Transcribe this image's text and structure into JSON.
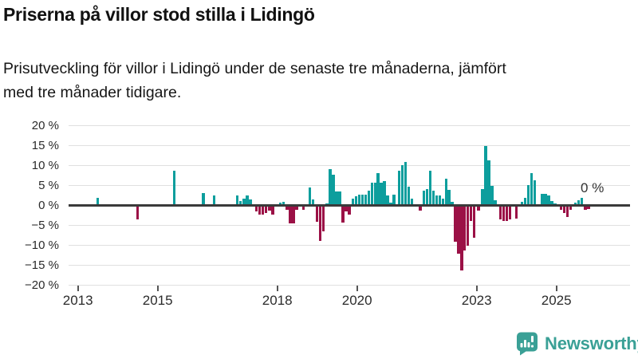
{
  "title": "Priserna på villor stod stilla i Lidingö",
  "subtitle": "Prisutveckling för villor i Lidingö under de senaste tre månaderna, jämfört\nmed tre månader tidigare.",
  "logo": {
    "text": "Newsworthy"
  },
  "colors": {
    "positive": "#0d9e9d",
    "negative": "#9b1146",
    "grid": "#e0e0e0",
    "zero_axis": "#3a3a3a",
    "tick": "#555555",
    "label_text": "#2b2b2b",
    "brand": "#3aa096"
  },
  "chart_data": {
    "type": "bar",
    "title": "Priserna på villor stod stilla i Lidingö",
    "xlabel": "",
    "ylabel": "",
    "unit": "%",
    "grid": true,
    "legend": "none",
    "ylim": [
      -20,
      20
    ],
    "y_tick_values": [
      20,
      15,
      10,
      5,
      0,
      -5,
      -10,
      -15,
      -20
    ],
    "y_tick_labels": [
      "20 %",
      "15 %",
      "10 %",
      "5 %",
      "0 %",
      "−5 %",
      "−10 %",
      "−15 %",
      "−20 %"
    ],
    "x_tick_values": [
      2013,
      2015,
      2018,
      2020,
      2023,
      2025
    ],
    "x_tick_labels": [
      "2013",
      "2015",
      "2018",
      "2020",
      "2023",
      "2025"
    ],
    "x_range": [
      2012.8,
      2026.9
    ],
    "annotation": {
      "text": "0 %",
      "t": 2025.9,
      "value": 0.0
    },
    "points": [
      [
        2013.5,
        2.0
      ],
      [
        2014.5,
        -3.4
      ],
      [
        2015.42,
        8.8
      ],
      [
        2016.15,
        3.2
      ],
      [
        2016.42,
        2.6
      ],
      [
        2017.0,
        2.5
      ],
      [
        2017.08,
        1.1
      ],
      [
        2017.17,
        1.8
      ],
      [
        2017.25,
        2.6
      ],
      [
        2017.33,
        1.6
      ],
      [
        2017.48,
        -1.5
      ],
      [
        2017.56,
        -2.3
      ],
      [
        2017.64,
        -2.3
      ],
      [
        2017.72,
        -1.9
      ],
      [
        2017.81,
        -1.3
      ],
      [
        2017.89,
        -2.2
      ],
      [
        2018.08,
        0.7
      ],
      [
        2018.16,
        0.9
      ],
      [
        2018.25,
        -1.0
      ],
      [
        2018.33,
        -4.5
      ],
      [
        2018.41,
        -4.4
      ],
      [
        2018.49,
        -1.0
      ],
      [
        2018.66,
        -1.1
      ],
      [
        2018.82,
        4.6
      ],
      [
        2018.9,
        1.5
      ],
      [
        2019.0,
        -4.1
      ],
      [
        2019.08,
        -8.9
      ],
      [
        2019.16,
        -6.5
      ],
      [
        2019.25,
        0.5
      ],
      [
        2019.33,
        9.2
      ],
      [
        2019.41,
        7.8
      ],
      [
        2019.49,
        3.6
      ],
      [
        2019.57,
        3.5
      ],
      [
        2019.65,
        -4.2
      ],
      [
        2019.73,
        -1.5
      ],
      [
        2019.81,
        -2.2
      ],
      [
        2019.9,
        1.8
      ],
      [
        2019.98,
        2.3
      ],
      [
        2020.06,
        2.8
      ],
      [
        2020.14,
        2.8
      ],
      [
        2020.22,
        2.8
      ],
      [
        2020.3,
        3.8
      ],
      [
        2020.38,
        5.8
      ],
      [
        2020.46,
        5.8
      ],
      [
        2020.53,
        8.1
      ],
      [
        2020.61,
        5.8
      ],
      [
        2020.69,
        6.1
      ],
      [
        2020.77,
        2.5
      ],
      [
        2020.85,
        0.8
      ],
      [
        2020.93,
        2.7
      ],
      [
        2021.06,
        8.8
      ],
      [
        2021.14,
        10.1
      ],
      [
        2021.22,
        11.0
      ],
      [
        2021.3,
        4.8
      ],
      [
        2021.38,
        1.8
      ],
      [
        2021.59,
        -1.2
      ],
      [
        2021.68,
        3.8
      ],
      [
        2021.76,
        4.2
      ],
      [
        2021.84,
        8.8
      ],
      [
        2021.92,
        3.8
      ],
      [
        2022.0,
        2.6
      ],
      [
        2022.08,
        2.6
      ],
      [
        2022.16,
        1.8
      ],
      [
        2022.24,
        6.8
      ],
      [
        2022.31,
        3.9
      ],
      [
        2022.39,
        1.0
      ],
      [
        2022.47,
        -9.0
      ],
      [
        2022.55,
        -12.0
      ],
      [
        2022.63,
        -16.2
      ],
      [
        2022.7,
        -11.2
      ],
      [
        2022.78,
        -10.0
      ],
      [
        2022.86,
        -3.8
      ],
      [
        2022.94,
        -8.0
      ],
      [
        2023.05,
        -1.2
      ],
      [
        2023.15,
        4.2
      ],
      [
        2023.23,
        15.0
      ],
      [
        2023.31,
        11.3
      ],
      [
        2023.39,
        5.0
      ],
      [
        2023.47,
        1.3
      ],
      [
        2023.6,
        -3.5
      ],
      [
        2023.68,
        -3.9
      ],
      [
        2023.76,
        -3.9
      ],
      [
        2023.84,
        -3.5
      ],
      [
        2024.0,
        -3.3
      ],
      [
        2024.14,
        1.0
      ],
      [
        2024.22,
        2.0
      ],
      [
        2024.3,
        5.1
      ],
      [
        2024.38,
        8.2
      ],
      [
        2024.46,
        6.3
      ],
      [
        2024.65,
        3.0
      ],
      [
        2024.73,
        3.0
      ],
      [
        2024.81,
        2.6
      ],
      [
        2024.89,
        1.1
      ],
      [
        2024.97,
        0.6
      ],
      [
        2025.12,
        -1.1
      ],
      [
        2025.2,
        -1.8
      ],
      [
        2025.28,
        -2.9
      ],
      [
        2025.36,
        -1.0
      ],
      [
        2025.48,
        0.7
      ],
      [
        2025.56,
        1.4
      ],
      [
        2025.64,
        1.9
      ],
      [
        2025.73,
        -1.1
      ],
      [
        2025.81,
        -0.8
      ],
      [
        2025.9,
        0.0
      ]
    ]
  }
}
